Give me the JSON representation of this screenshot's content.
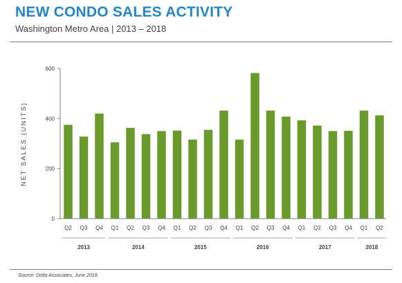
{
  "header": {
    "title": "NEW CONDO SALES ACTIVITY",
    "subtitle": "Washington Metro Area  |  2013 – 2018"
  },
  "footer": {
    "source": "Source: Delta Associates, June 2018."
  },
  "colors": {
    "title": "#2386c8",
    "bar": "#6b9a2c",
    "axis": "#808080"
  },
  "chart_data": {
    "type": "bar",
    "ylabel": "NET SALES (UNITS)",
    "ylim": [
      0,
      600
    ],
    "yticks": [
      0,
      200,
      400,
      600
    ],
    "grid": false,
    "legend": "none",
    "categories": [
      "Q2",
      "Q3",
      "Q4",
      "Q1",
      "Q2",
      "Q3",
      "Q4",
      "Q1",
      "Q2",
      "Q3",
      "Q4",
      "Q1",
      "Q2",
      "Q3",
      "Q4",
      "Q1",
      "Q2",
      "Q3",
      "Q4",
      "Q1",
      "Q2"
    ],
    "values": [
      375,
      328,
      420,
      305,
      363,
      338,
      350,
      352,
      316,
      355,
      432,
      316,
      582,
      432,
      408,
      393,
      372,
      350,
      351,
      432,
      413
    ],
    "groups": [
      {
        "label": "2013",
        "count": 3
      },
      {
        "label": "2014",
        "count": 4
      },
      {
        "label": "2015",
        "count": 4
      },
      {
        "label": "2016",
        "count": 4
      },
      {
        "label": "2017",
        "count": 4
      },
      {
        "label": "2018",
        "count": 2
      }
    ]
  }
}
